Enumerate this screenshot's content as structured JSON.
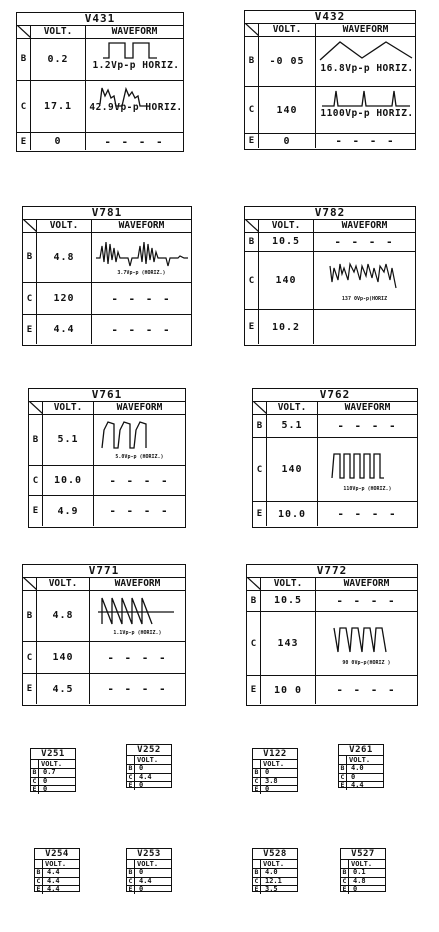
{
  "headers": {
    "volt": "VOLT.",
    "waveform": "WAVEFORM"
  },
  "dashes": "- - - -",
  "large_tables": [
    {
      "id": "V431",
      "rows": [
        {
          "pin": "B",
          "volt": "0.2",
          "wave_label": "1.2Vp-p HORIZ."
        },
        {
          "pin": "C",
          "volt": "17.1",
          "wave_label": "42.9Vp-p HORIZ."
        },
        {
          "pin": "E",
          "volt": "0",
          "wave_label": ""
        }
      ]
    },
    {
      "id": "V432",
      "rows": [
        {
          "pin": "B",
          "volt": "-0 05",
          "wave_label": "16.8Vp-p HORIZ."
        },
        {
          "pin": "C",
          "volt": "140",
          "wave_label": "1100Vp-p HORIZ."
        },
        {
          "pin": "E",
          "volt": "0",
          "wave_label": ""
        }
      ]
    },
    {
      "id": "V781",
      "rows": [
        {
          "pin": "B",
          "volt": "4.8",
          "wave_label": "3.7Vp-p (HORIZ.)"
        },
        {
          "pin": "C",
          "volt": "120",
          "wave_label": ""
        },
        {
          "pin": "E",
          "volt": "4.4",
          "wave_label": ""
        }
      ]
    },
    {
      "id": "V782",
      "rows": [
        {
          "pin": "B",
          "volt": "10.5",
          "wave_label": ""
        },
        {
          "pin": "C",
          "volt": "140",
          "wave_label": "137 0Vp-p(HORIZ"
        },
        {
          "pin": "E",
          "volt": "10.2",
          "wave_label": ""
        }
      ]
    },
    {
      "id": "V761",
      "rows": [
        {
          "pin": "B",
          "volt": "5.1",
          "wave_label": "5.0Vp-p (HORIZ.)"
        },
        {
          "pin": "C",
          "volt": "10.0",
          "wave_label": ""
        },
        {
          "pin": "E",
          "volt": "4.9",
          "wave_label": ""
        }
      ]
    },
    {
      "id": "V762",
      "rows": [
        {
          "pin": "B",
          "volt": "5.1",
          "wave_label": ""
        },
        {
          "pin": "C",
          "volt": "140",
          "wave_label": "110Vp-p (HORIZ.)"
        },
        {
          "pin": "E",
          "volt": "10.0",
          "wave_label": ""
        }
      ]
    },
    {
      "id": "V771",
      "rows": [
        {
          "pin": "B",
          "volt": "4.8",
          "wave_label": "1.1Vp-p (HORIZ.)"
        },
        {
          "pin": "C",
          "volt": "140",
          "wave_label": ""
        },
        {
          "pin": "E",
          "volt": "4.5",
          "wave_label": ""
        }
      ]
    },
    {
      "id": "V772",
      "rows": [
        {
          "pin": "B",
          "volt": "10.5",
          "wave_label": ""
        },
        {
          "pin": "C",
          "volt": "143",
          "wave_label": "90 0Vp-p(HORIZ )"
        },
        {
          "pin": "E",
          "volt": "10 0",
          "wave_label": ""
        }
      ]
    }
  ],
  "small_tables": [
    {
      "id": "V251",
      "volt_header": "VOLT.",
      "rows": [
        {
          "pin": "B",
          "volt": "0.7"
        },
        {
          "pin": "C",
          "volt": "0"
        },
        {
          "pin": "E",
          "volt": "0"
        }
      ]
    },
    {
      "id": "V252",
      "volt_header": "VOLT.",
      "rows": [
        {
          "pin": "B",
          "volt": "0"
        },
        {
          "pin": "C",
          "volt": "4.4"
        },
        {
          "pin": "E",
          "volt": "0"
        }
      ]
    },
    {
      "id": "V122",
      "volt_header": "VOLT.",
      "rows": [
        {
          "pin": "B",
          "volt": "0"
        },
        {
          "pin": "C",
          "volt": "3.8"
        },
        {
          "pin": "E",
          "volt": "0"
        }
      ]
    },
    {
      "id": "V261",
      "volt_header": "VOLT.",
      "rows": [
        {
          "pin": "B",
          "volt": "4.0"
        },
        {
          "pin": "C",
          "volt": "0"
        },
        {
          "pin": "E",
          "volt": "4.4"
        }
      ]
    },
    {
      "id": "V254",
      "volt_header": "VOLT.",
      "rows": [
        {
          "pin": "B",
          "volt": "4.4"
        },
        {
          "pin": "C",
          "volt": "4.4"
        },
        {
          "pin": "E",
          "volt": "4.4"
        }
      ]
    },
    {
      "id": "V253",
      "volt_header": "VOLT.",
      "rows": [
        {
          "pin": "B",
          "volt": "0"
        },
        {
          "pin": "C",
          "volt": "4.4"
        },
        {
          "pin": "E",
          "volt": "0"
        }
      ]
    },
    {
      "id": "V528",
      "volt_header": "VOLT.",
      "rows": [
        {
          "pin": "B",
          "volt": "4.0"
        },
        {
          "pin": "C",
          "volt": "12.1"
        },
        {
          "pin": "E",
          "volt": "3.5"
        }
      ]
    },
    {
      "id": "V527",
      "volt_header": "VOLT.",
      "rows": [
        {
          "pin": "B",
          "volt": "0.1"
        },
        {
          "pin": "C",
          "volt": "4.8"
        },
        {
          "pin": "E",
          "volt": "0"
        }
      ]
    }
  ]
}
